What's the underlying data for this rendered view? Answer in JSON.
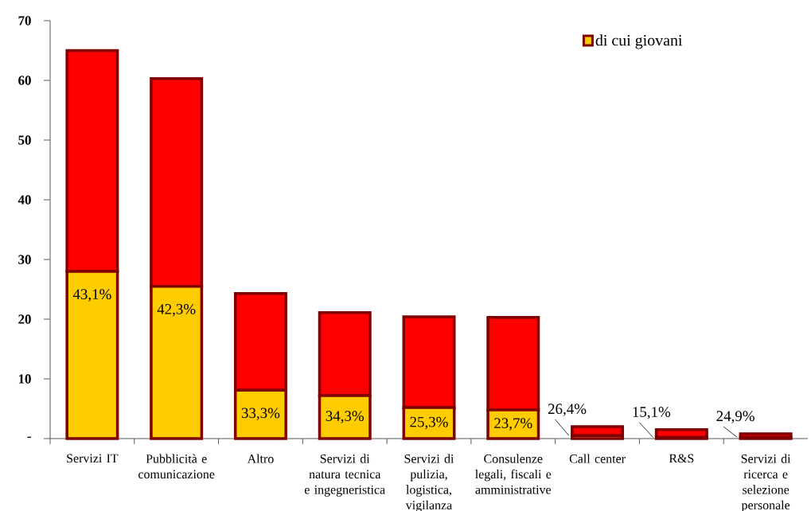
{
  "chart_data": {
    "type": "bar",
    "stacked": true,
    "categories": [
      "Servizi IT",
      "Pubblicità e comunicazione",
      "Altro",
      "Servizi di natura tecnica e ingegneristica",
      "Servizi di pulizia, logistica, vigilanza",
      "Consulenze legali, fiscali e amministrative",
      "Call center",
      "R&S",
      "Servizi di ricerca e selezione personale"
    ],
    "series": [
      {
        "name": "di cui giovani",
        "color": "#ffcc00",
        "values": [
          28.0,
          25.5,
          8.1,
          7.2,
          5.2,
          4.8,
          0.5,
          0.2,
          0.2
        ]
      },
      {
        "color": "#ff0000",
        "values": [
          37.0,
          34.8,
          16.2,
          13.9,
          15.2,
          15.5,
          1.5,
          1.3,
          0.6
        ]
      }
    ],
    "annotations": [
      {
        "text": "43,1%",
        "x": "Servizi IT",
        "y": 28.0
      },
      {
        "text": "42,3%",
        "x": "Pubblicità e comunicazione",
        "y": 25.5
      },
      {
        "text": "33,3%",
        "x": "Altro",
        "y": 8.1
      },
      {
        "text": "34,3%",
        "x": "Servizi di natura tecnica e ingegneristica",
        "y": 7.2
      },
      {
        "text": "25,3%",
        "x": "Servizi di pulizia, logistica, vigilanza",
        "y": 5.2
      },
      {
        "text": "23,7%",
        "x": "Consulenze legali, fiscali e amministrative",
        "y": 4.8
      },
      {
        "text": "26,4%",
        "x": "Call center",
        "y": 0.5
      },
      {
        "text": "15,1%",
        "x": "R&S",
        "y": 0.2
      },
      {
        "text": "24,9%",
        "x": "Servizi di ricerca e selezione personale",
        "y": 0.2
      }
    ],
    "ylim": [
      0,
      70
    ],
    "yticks": [
      {
        "value": 0,
        "label": "-"
      },
      10,
      20,
      30,
      40,
      50,
      60,
      70
    ],
    "legend": "top right"
  }
}
